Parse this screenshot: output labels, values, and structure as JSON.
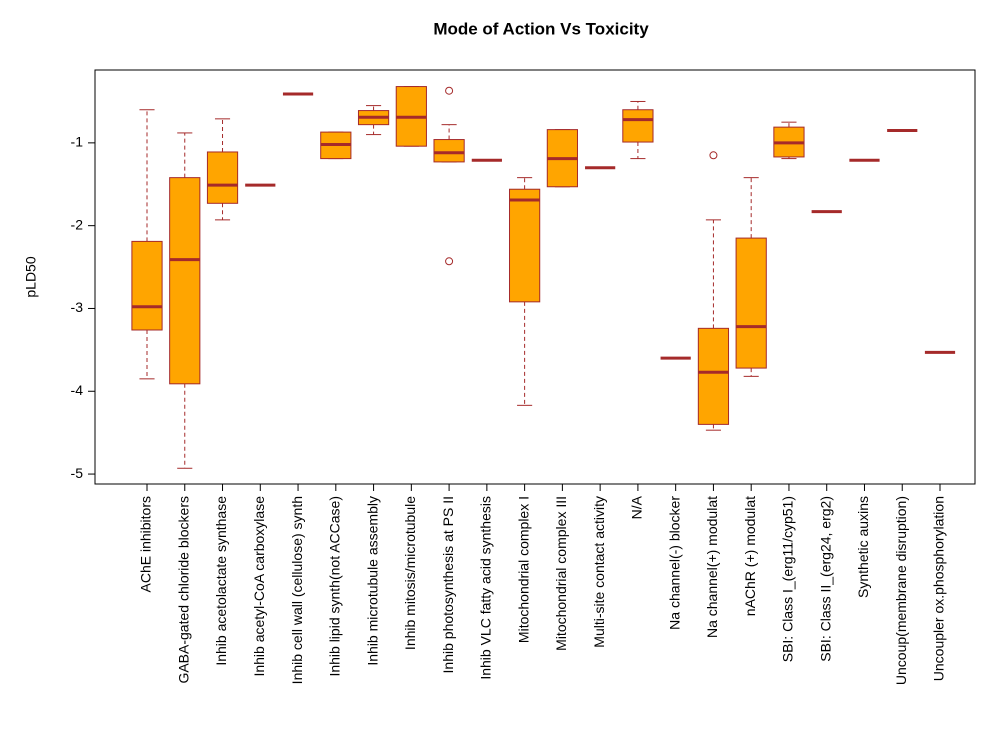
{
  "chart_data": {
    "type": "box",
    "title": "Mode of Action Vs Toxicity",
    "y_label": "pLD50",
    "categories": [
      "AChE inhibitors",
      "GABA-gated chloride blockers",
      "Inhib acetolactate synthase",
      "Inhib acetyl-CoA carboxylase",
      "Inhib cell wall (cellulose) synth",
      "Inhib lipid synth(not ACCase)",
      "Inhib microtubule assembly",
      "Inhib mitosis/microtubule",
      "Inhib photosynthesis at PS II",
      "Inhib VLC fatty acid synthesis",
      "Mitochondrial complex I",
      "Mitochondrial complex III",
      "Multi-site contact activity",
      "N/A",
      "Na channel(-) blocker",
      "Na channel(+) modulat",
      "nAChR (+) modulat",
      "SBI: Class I_(erg11/cyp51)",
      "SBI: Class II_(erg24, erg2)",
      "Synthetic auxins",
      "Uncoup(membrane disruption)",
      "Uncoupler ox.phosphorylation"
    ],
    "boxes": [
      {
        "whisker_low": -3.85,
        "q1": -3.26,
        "median": -2.98,
        "q3": -2.19,
        "whisker_high": -0.6,
        "outliers": []
      },
      {
        "whisker_low": -4.93,
        "q1": -3.91,
        "median": -2.41,
        "q3": -1.42,
        "whisker_high": -0.88,
        "outliers": []
      },
      {
        "whisker_low": -1.93,
        "q1": -1.73,
        "median": -1.51,
        "q3": -1.11,
        "whisker_high": -0.71,
        "outliers": []
      },
      {
        "whisker_low": -1.51,
        "q1": -1.51,
        "median": -1.51,
        "q3": -1.51,
        "whisker_high": -1.51,
        "outliers": []
      },
      {
        "whisker_low": -0.41,
        "q1": -0.41,
        "median": -0.41,
        "q3": -0.41,
        "whisker_high": -0.41,
        "outliers": []
      },
      {
        "whisker_low": -1.19,
        "q1": -1.19,
        "median": -1.02,
        "q3": -0.87,
        "whisker_high": -0.87,
        "outliers": []
      },
      {
        "whisker_low": -0.9,
        "q1": -0.78,
        "median": -0.69,
        "q3": -0.61,
        "whisker_high": -0.55,
        "outliers": []
      },
      {
        "whisker_low": -1.04,
        "q1": -1.04,
        "median": -0.69,
        "q3": -0.32,
        "whisker_high": -0.32,
        "outliers": []
      },
      {
        "whisker_low": -1.23,
        "q1": -1.23,
        "median": -1.12,
        "q3": -0.96,
        "whisker_high": -0.78,
        "outliers": [
          -0.37,
          -2.43
        ]
      },
      {
        "whisker_low": -1.21,
        "q1": -1.21,
        "median": -1.21,
        "q3": -1.21,
        "whisker_high": -1.21,
        "outliers": []
      },
      {
        "whisker_low": -4.17,
        "q1": -2.92,
        "median": -1.69,
        "q3": -1.56,
        "whisker_high": -1.42,
        "outliers": []
      },
      {
        "whisker_low": -1.53,
        "q1": -1.53,
        "median": -1.19,
        "q3": -0.84,
        "whisker_high": -0.84,
        "outliers": []
      },
      {
        "whisker_low": -1.3,
        "q1": -1.3,
        "median": -1.3,
        "q3": -1.3,
        "whisker_high": -1.3,
        "outliers": []
      },
      {
        "whisker_low": -1.19,
        "q1": -0.99,
        "median": -0.72,
        "q3": -0.6,
        "whisker_high": -0.5,
        "outliers": []
      },
      {
        "whisker_low": -3.6,
        "q1": -3.6,
        "median": -3.6,
        "q3": -3.6,
        "whisker_high": -3.6,
        "outliers": []
      },
      {
        "whisker_low": -4.47,
        "q1": -4.4,
        "median": -3.77,
        "q3": -3.24,
        "whisker_high": -1.93,
        "outliers": [
          -1.15
        ]
      },
      {
        "whisker_low": -3.82,
        "q1": -3.72,
        "median": -3.22,
        "q3": -2.15,
        "whisker_high": -1.42,
        "outliers": []
      },
      {
        "whisker_low": -1.19,
        "q1": -1.17,
        "median": -1.0,
        "q3": -0.81,
        "whisker_high": -0.75,
        "outliers": []
      },
      {
        "whisker_low": -1.83,
        "q1": -1.83,
        "median": -1.83,
        "q3": -1.83,
        "whisker_high": -1.83,
        "outliers": []
      },
      {
        "whisker_low": -1.21,
        "q1": -1.21,
        "median": -1.21,
        "q3": -1.21,
        "whisker_high": -1.21,
        "outliers": []
      },
      {
        "whisker_low": -0.85,
        "q1": -0.85,
        "median": -0.85,
        "q3": -0.85,
        "whisker_high": -0.85,
        "outliers": []
      },
      {
        "whisker_low": -3.53,
        "q1": -3.53,
        "median": -3.53,
        "q3": -3.53,
        "whisker_high": -3.53,
        "outliers": []
      }
    ],
    "fill_color": "#ffa500",
    "line_color": "#a52a2a",
    "ylim": [
      -5.12,
      -0.12
    ],
    "yticks": [
      -5,
      -4,
      -3,
      -2,
      -1
    ]
  }
}
